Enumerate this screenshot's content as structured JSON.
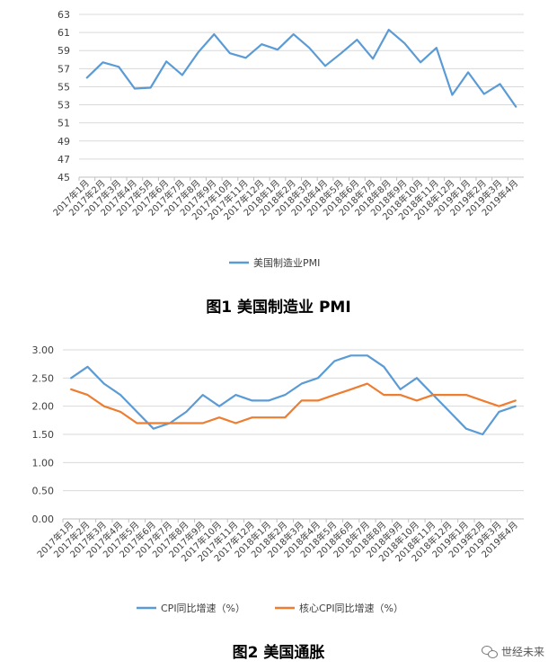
{
  "watermark": {
    "text": "世经未来",
    "icon": "wechat-icon"
  },
  "chart_data": [
    {
      "type": "line",
      "title": "图1 美国制造业 PMI",
      "categories": [
        "2017年1月",
        "2017年2月",
        "2017年3月",
        "2017年4月",
        "2017年5月",
        "2017年6月",
        "2017年7月",
        "2017年8月",
        "2017年9月",
        "2017年10月",
        "2017年11月",
        "2017年12月",
        "2018年1月",
        "2018年2月",
        "2018年3月",
        "2018年4月",
        "2018年5月",
        "2018年6月",
        "2018年7月",
        "2018年8月",
        "2018年9月",
        "2018年10月",
        "2018年11月",
        "2018年12月",
        "2019年1月",
        "2019年2月",
        "2019年3月",
        "2019年4月"
      ],
      "series": [
        {
          "name": "美国制造业PMI",
          "color": "#5b9bd5",
          "values": [
            56.0,
            57.7,
            57.2,
            54.8,
            54.9,
            57.8,
            56.3,
            58.8,
            60.8,
            58.7,
            58.2,
            59.7,
            59.1,
            60.8,
            59.3,
            57.3,
            58.7,
            60.2,
            58.1,
            61.3,
            59.8,
            57.7,
            59.3,
            54.1,
            56.6,
            54.2,
            55.3,
            52.8
          ]
        }
      ],
      "ylim": [
        45,
        63
      ],
      "yticks": [
        "45",
        "47",
        "49",
        "51",
        "53",
        "55",
        "57",
        "59",
        "61",
        "63"
      ],
      "grid": true,
      "legend": "bottom"
    },
    {
      "type": "line",
      "title": "图2 美国通胀",
      "categories": [
        "2017年1月",
        "2017年2月",
        "2017年3月",
        "2017年4月",
        "2017年5月",
        "2017年6月",
        "2017年7月",
        "2017年8月",
        "2017年9月",
        "2017年10月",
        "2017年11月",
        "2017年12月",
        "2018年1月",
        "2018年2月",
        "2018年3月",
        "2018年4月",
        "2018年5月",
        "2018年6月",
        "2018年7月",
        "2018年8月",
        "2018年9月",
        "2018年10月",
        "2018年11月",
        "2018年12月",
        "2019年1月",
        "2019年2月",
        "2019年3月",
        "2019年4月"
      ],
      "series": [
        {
          "name": "CPI同比增速（%）",
          "color": "#5b9bd5",
          "values": [
            2.5,
            2.7,
            2.4,
            2.2,
            1.9,
            1.6,
            1.7,
            1.9,
            2.2,
            2.0,
            2.2,
            2.1,
            2.1,
            2.2,
            2.4,
            2.5,
            2.8,
            2.9,
            2.9,
            2.7,
            2.3,
            2.5,
            2.2,
            1.9,
            1.6,
            1.5,
            1.9,
            2.0
          ]
        },
        {
          "name": "核心CPI同比增速（%）",
          "color": "#ed7d31",
          "values": [
            2.3,
            2.2,
            2.0,
            1.9,
            1.7,
            1.7,
            1.7,
            1.7,
            1.7,
            1.8,
            1.7,
            1.8,
            1.8,
            1.8,
            2.1,
            2.1,
            2.2,
            2.3,
            2.4,
            2.2,
            2.2,
            2.1,
            2.2,
            2.2,
            2.2,
            2.1,
            2.0,
            2.1
          ]
        }
      ],
      "ylim": [
        0,
        3
      ],
      "yticks": [
        "0.00",
        "0.50",
        "1.00",
        "1.50",
        "2.00",
        "2.50",
        "3.00"
      ],
      "grid": true,
      "legend": "bottom"
    }
  ]
}
